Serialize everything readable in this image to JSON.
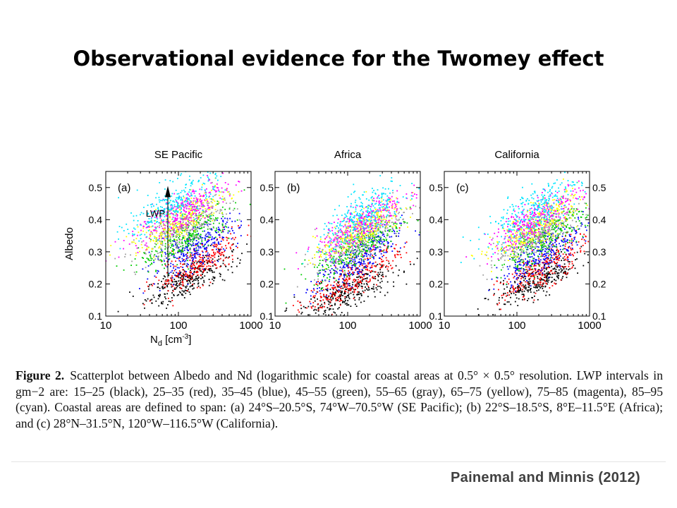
{
  "slide": {
    "title": "Observational evidence for the Twomey effect",
    "caption_label": "Figure 2.",
    "caption_text": "Scatterplot between Albedo and Nd (logarithmic scale) for coastal areas at 0.5° × 0.5° resolution. LWP intervals in gm−2 are: 15–25 (black), 25–35 (red), 35–45 (blue), 45–55 (green), 55–65 (gray), 65–75 (yellow), 75–85 (magenta), 85–95 (cyan). Coastal areas are defined to span: (a) 24°S–20.5°S, 74°W–70.5°W (SE Pacific); (b) 22°S–18.5°S, 8°E–11.5°E (Africa); and (c) 28°N–31.5°N, 120°W–116.5°W (California).",
    "credit": "Painemal and Minnis (2012)"
  },
  "chart_data": [
    {
      "type": "scatter",
      "panel_label": "(a)",
      "title": "SE Pacific",
      "ylabel": "Albedo",
      "xlabel": "Nd [cm-3]",
      "xscale": "log",
      "xlim": [
        10,
        1000
      ],
      "ylim": [
        0.1,
        0.55
      ],
      "xticks": [
        "10",
        "100",
        "1000"
      ],
      "yticks": [
        "0.1",
        "0.2",
        "0.3",
        "0.4",
        "0.5"
      ],
      "annotation": "LWP",
      "series": [
        {
          "name": "15–25",
          "color": "#000000",
          "nd_center": 140,
          "albedo_center": 0.215,
          "nd_spread": 0.3,
          "albedo_spread": 0.025,
          "slope": 0.1
        },
        {
          "name": "25–35",
          "color": "#ff0000",
          "nd_center": 190,
          "albedo_center": 0.265,
          "nd_spread": 0.3,
          "albedo_spread": 0.03,
          "slope": 0.12
        },
        {
          "name": "35–45",
          "color": "#0000ff",
          "nd_center": 170,
          "albedo_center": 0.31,
          "nd_spread": 0.3,
          "albedo_spread": 0.03,
          "slope": 0.12
        },
        {
          "name": "45–55",
          "color": "#00cc00",
          "nd_center": 130,
          "albedo_center": 0.345,
          "nd_spread": 0.32,
          "albedo_spread": 0.03,
          "slope": 0.12
        },
        {
          "name": "55–65",
          "color": "#a0a0a0",
          "nd_center": 120,
          "albedo_center": 0.37,
          "nd_spread": 0.32,
          "albedo_spread": 0.03,
          "slope": 0.12
        },
        {
          "name": "65–75",
          "color": "#ffff00",
          "nd_center": 110,
          "albedo_center": 0.4,
          "nd_spread": 0.32,
          "albedo_spread": 0.03,
          "slope": 0.12
        },
        {
          "name": "75–85",
          "color": "#ff00ff",
          "nd_center": 100,
          "albedo_center": 0.42,
          "nd_spread": 0.32,
          "albedo_spread": 0.03,
          "slope": 0.12
        },
        {
          "name": "85–95",
          "color": "#00e5ff",
          "nd_center": 90,
          "albedo_center": 0.45,
          "nd_spread": 0.33,
          "albedo_spread": 0.035,
          "slope": 0.12
        }
      ]
    },
    {
      "type": "scatter",
      "panel_label": "(b)",
      "title": "Africa",
      "xscale": "log",
      "xlim": [
        10,
        1000
      ],
      "ylim": [
        0.1,
        0.55
      ],
      "xticks": [
        "10",
        "100",
        "1000"
      ],
      "yticks": [
        "0.1",
        "0.2",
        "0.3",
        "0.4",
        "0.5"
      ],
      "series": [
        {
          "name": "15–25",
          "color": "#000000",
          "nd_center": 100,
          "albedo_center": 0.175,
          "nd_spread": 0.35,
          "albedo_spread": 0.025,
          "slope": 0.1
        },
        {
          "name": "25–35",
          "color": "#ff0000",
          "nd_center": 120,
          "albedo_center": 0.22,
          "nd_spread": 0.33,
          "albedo_spread": 0.03,
          "slope": 0.13
        },
        {
          "name": "35–45",
          "color": "#0000ff",
          "nd_center": 140,
          "albedo_center": 0.275,
          "nd_spread": 0.3,
          "albedo_spread": 0.03,
          "slope": 0.13
        },
        {
          "name": "45–55",
          "color": "#00cc00",
          "nd_center": 140,
          "albedo_center": 0.315,
          "nd_spread": 0.3,
          "albedo_spread": 0.03,
          "slope": 0.13
        },
        {
          "name": "55–65",
          "color": "#a0a0a0",
          "nd_center": 140,
          "albedo_center": 0.34,
          "nd_spread": 0.3,
          "albedo_spread": 0.03,
          "slope": 0.13
        },
        {
          "name": "65–75",
          "color": "#ffff00",
          "nd_center": 140,
          "albedo_center": 0.365,
          "nd_spread": 0.3,
          "albedo_spread": 0.03,
          "slope": 0.13
        },
        {
          "name": "75–85",
          "color": "#ff00ff",
          "nd_center": 150,
          "albedo_center": 0.385,
          "nd_spread": 0.3,
          "albedo_spread": 0.03,
          "slope": 0.13
        },
        {
          "name": "85–95",
          "color": "#00e5ff",
          "nd_center": 160,
          "albedo_center": 0.41,
          "nd_spread": 0.3,
          "albedo_spread": 0.035,
          "slope": 0.13
        }
      ]
    },
    {
      "type": "scatter",
      "panel_label": "(c)",
      "title": "California",
      "xscale": "log",
      "xlim": [
        10,
        1000
      ],
      "ylim": [
        0.1,
        0.55
      ],
      "xticks": [
        "10",
        "100",
        "1000"
      ],
      "yticks": [
        "0.1",
        "0.2",
        "0.3",
        "0.4",
        "0.5"
      ],
      "series": [
        {
          "name": "15–25",
          "color": "#000000",
          "nd_center": 200,
          "albedo_center": 0.21,
          "nd_spread": 0.3,
          "albedo_spread": 0.025,
          "slope": 0.1
        },
        {
          "name": "25–35",
          "color": "#ff0000",
          "nd_center": 230,
          "albedo_center": 0.25,
          "nd_spread": 0.3,
          "albedo_spread": 0.03,
          "slope": 0.13
        },
        {
          "name": "35–45",
          "color": "#0000ff",
          "nd_center": 240,
          "albedo_center": 0.3,
          "nd_spread": 0.3,
          "albedo_spread": 0.03,
          "slope": 0.13
        },
        {
          "name": "45–55",
          "color": "#00cc00",
          "nd_center": 220,
          "albedo_center": 0.335,
          "nd_spread": 0.3,
          "albedo_spread": 0.03,
          "slope": 0.13
        },
        {
          "name": "55–65",
          "color": "#a0a0a0",
          "nd_center": 200,
          "albedo_center": 0.36,
          "nd_spread": 0.3,
          "albedo_spread": 0.03,
          "slope": 0.13
        },
        {
          "name": "65–75",
          "color": "#ffff00",
          "nd_center": 190,
          "albedo_center": 0.38,
          "nd_spread": 0.3,
          "albedo_spread": 0.03,
          "slope": 0.13
        },
        {
          "name": "75–85",
          "color": "#ff00ff",
          "nd_center": 180,
          "albedo_center": 0.4,
          "nd_spread": 0.31,
          "albedo_spread": 0.03,
          "slope": 0.13
        },
        {
          "name": "85–95",
          "color": "#00e5ff",
          "nd_center": 170,
          "albedo_center": 0.43,
          "nd_spread": 0.32,
          "albedo_spread": 0.035,
          "slope": 0.13
        }
      ]
    }
  ]
}
